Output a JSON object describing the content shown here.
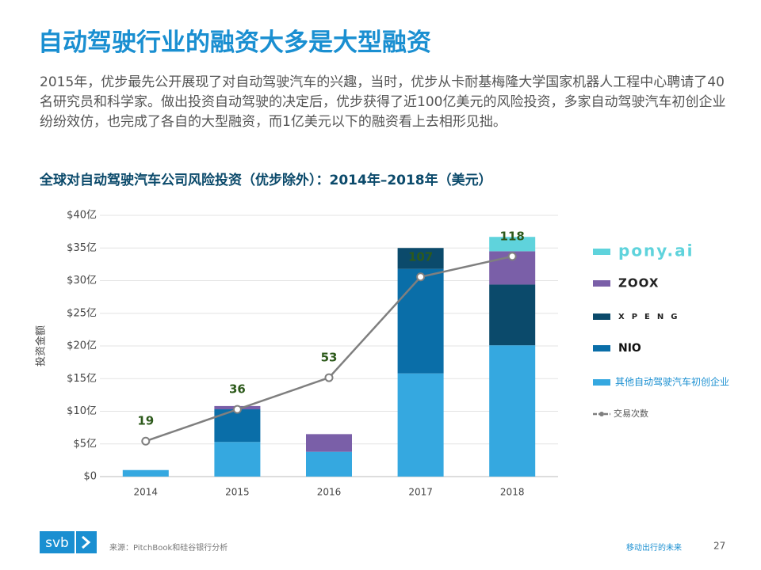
{
  "header": {
    "title": "自动驾驶行业的融资大多是大型融资",
    "paragraph": "2015年，优步最先公开展现了对自动驾驶汽车的兴趣，当时，优步从卡耐基梅隆大学国家机器人工程中心聘请了40名研究员和科学家。做出投资自动驾驶的决定后，优步获得了近100亿美元的风险投资，多家自动驾驶汽车初创企业纷纷效仿，也完成了各自的大型融资，而1亿美元以下的融资看上去相形见拙。"
  },
  "chart_data": {
    "type": "bar",
    "stacked": true,
    "title": "全球对自动驾驶汽车公司风险投资（优步除外）：2014年–2018年（美元）",
    "y_label": "投资金额",
    "categories": [
      "2014",
      "2015",
      "2016",
      "2017",
      "2018"
    ],
    "series": [
      {
        "name": "其他自动驾驶汽车初创企业",
        "color": "#35a8e0",
        "values": [
          1.0,
          5.3,
          3.8,
          15.8,
          20.1
        ]
      },
      {
        "name": "NIO",
        "color": "#0a6ea8",
        "values": [
          0,
          5.0,
          0,
          16.0,
          0
        ]
      },
      {
        "name": "XPENG",
        "color": "#0b4a6b",
        "values": [
          0,
          0,
          0,
          3.2,
          9.3
        ]
      },
      {
        "name": "ZOOX",
        "color": "#7a5fa8",
        "values": [
          0,
          0.5,
          2.7,
          0,
          5.1
        ]
      },
      {
        "name": "pony.ai",
        "color": "#5fd3dc",
        "values": [
          0,
          0,
          0,
          0,
          2.2
        ]
      },
      {
        "name": "交易次数",
        "type": "line",
        "axis": "y2",
        "color": "#7f7f7f",
        "values": [
          19,
          36,
          53,
          107,
          118
        ]
      }
    ],
    "ylim": [
      0,
      40
    ],
    "yticks": [
      {
        "value": 0,
        "label": "$0"
      },
      {
        "value": 5,
        "label": "$5亿"
      },
      {
        "value": 10,
        "label": "$10亿"
      },
      {
        "value": 15,
        "label": "$15亿"
      },
      {
        "value": 20,
        "label": "$20亿"
      },
      {
        "value": 25,
        "label": "$25亿"
      },
      {
        "value": 30,
        "label": "$30亿"
      },
      {
        "value": 35,
        "label": "$35亿"
      },
      {
        "value": 40,
        "label": "$40亿"
      }
    ],
    "y2lim": [
      0,
      140
    ],
    "grid": true,
    "legend": "right"
  },
  "footer": {
    "logo": "svb",
    "source": "来源：PitchBook和硅谷银行分析",
    "section": "移动出行的未来",
    "page": "27"
  }
}
